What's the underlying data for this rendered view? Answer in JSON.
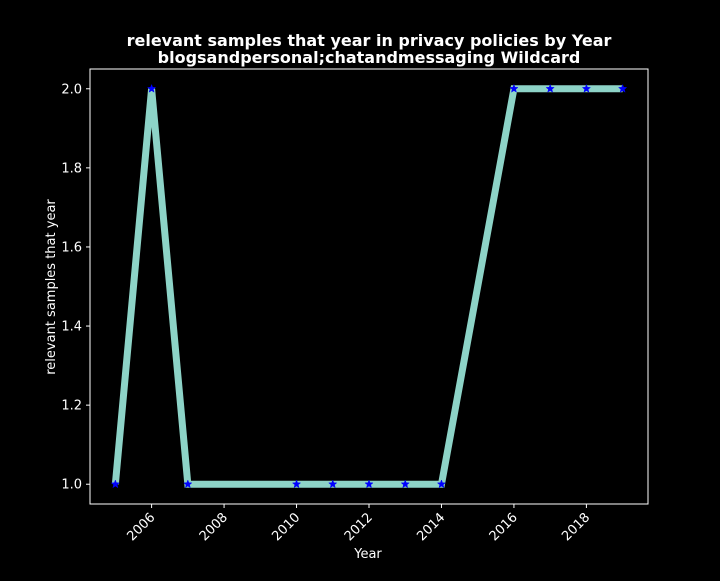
{
  "chart_data": {
    "type": "line",
    "title": "relevant samples that year in privacy policies by Year",
    "subtitle": "blogsandpersonal;chatandmessaging Wildcard",
    "xlabel": "Year",
    "ylabel": "relevant samples that year",
    "xlim": [
      2004.3,
      2019.7
    ],
    "ylim": [
      0.95,
      2.05
    ],
    "x_ticks": [
      2006,
      2008,
      2010,
      2012,
      2014,
      2016,
      2018
    ],
    "y_ticks": [
      1.0,
      1.2,
      1.4,
      1.6,
      1.8,
      2.0
    ],
    "y_tick_labels": [
      "1.0",
      "1.2",
      "1.4",
      "1.6",
      "1.8",
      "2.0"
    ],
    "grid": false,
    "legend": "none",
    "series": [
      {
        "x": [
          2005,
          2006,
          2007,
          2010,
          2011,
          2012,
          2013,
          2014,
          2016,
          2017,
          2018,
          2019
        ],
        "y": [
          1,
          2,
          1,
          1,
          1,
          1,
          1,
          1,
          2,
          2,
          2,
          2
        ],
        "line_color": "#8dd3c7",
        "marker": "star",
        "marker_color": "#0000ff"
      }
    ],
    "colors": {
      "background": "#000000",
      "foreground": "#ffffff"
    }
  }
}
